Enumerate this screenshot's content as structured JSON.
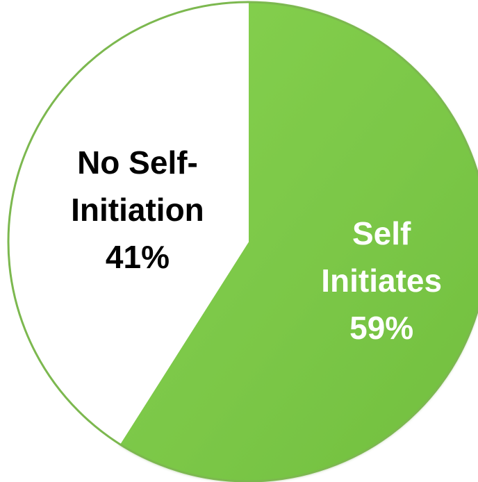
{
  "chart_data": {
    "type": "pie",
    "slices": [
      {
        "label_lines": [
          "Self",
          "Initiates"
        ],
        "value_label": "59%",
        "value": 59,
        "color": "#7ecb4a",
        "text_color": "#ffffff"
      },
      {
        "label_lines": [
          "No Self-",
          "Initiation"
        ],
        "value_label": "41%",
        "value": 41,
        "color": "#ffffff",
        "text_color": "#000000"
      }
    ]
  }
}
